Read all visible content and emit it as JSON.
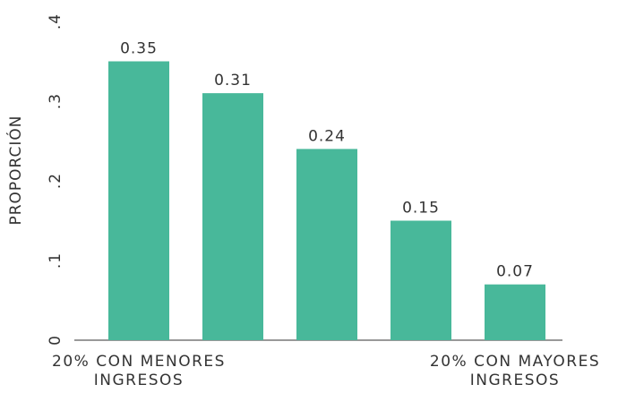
{
  "chart_data": {
    "type": "bar",
    "ylabel": "PROPORCIÓN",
    "categories": [
      "20% CON MENORES INGRESOS",
      null,
      null,
      null,
      "20% CON MAYORES INGRESOS"
    ],
    "values": [
      0.35,
      0.31,
      0.24,
      0.15,
      0.07
    ],
    "color": "#48b89a",
    "ylim": [
      0,
      0.4
    ],
    "yticks": [
      0,
      {
        "value": 0.1,
        "label": ".1"
      },
      {
        "value": 0.2,
        "label": ".2"
      },
      {
        "value": 0.3,
        "label": ".3"
      },
      {
        "value": 0.4,
        "label": ".4"
      }
    ],
    "grid": false
  }
}
